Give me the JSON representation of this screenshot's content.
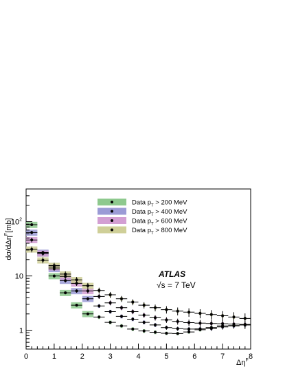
{
  "chart_data": {
    "type": "scatter",
    "xlabel_main": "Δη",
    "xlabel_sup": "F",
    "ylabel": "dσ/dΔη",
    "ylabel_sup": "F",
    "ylabel_unit": "[mb]",
    "xlim": [
      0,
      8
    ],
    "ylim": [
      0.45,
      400
    ],
    "ylog": true,
    "x_ticks": [
      "0",
      "1",
      "2",
      "3",
      "4",
      "5",
      "6",
      "7",
      "8"
    ],
    "y_tick_labels": {
      "ten_sq_base": "10",
      "ten_sq_exp": "2",
      "ten": "10",
      "one": "1"
    },
    "legend_position": "top-center",
    "annotation_title": "ATLAS",
    "annotation_energy": "√s = 7 TeV",
    "series": [
      {
        "name": "Data p",
        "name_sub": "T",
        "name_cut": " > 200 MeV",
        "band_color": "#8ec98e",
        "x": [
          0.2,
          0.6,
          1.0,
          1.4,
          1.8,
          2.2,
          2.6,
          3.0,
          3.4,
          3.8,
          4.2,
          4.6,
          5.0,
          5.4,
          5.8,
          6.2,
          6.6,
          7.0,
          7.4,
          7.8
        ],
        "y": [
          88,
          26,
          10,
          4.9,
          2.9,
          2.0,
          1.75,
          1.4,
          1.2,
          1.05,
          0.97,
          0.92,
          0.88,
          0.87,
          0.93,
          1.02,
          1.12,
          1.2,
          1.22,
          1.25
        ]
      },
      {
        "name": "Data p",
        "name_sub": "T",
        "name_cut": " > 400 MeV",
        "band_color": "#9b9bd6",
        "x": [
          0.2,
          0.6,
          1.0,
          1.4,
          1.8,
          2.2,
          2.6,
          3.0,
          3.4,
          3.8,
          4.2,
          4.6,
          5.0,
          5.4,
          5.8,
          6.2,
          6.6,
          7.0,
          7.4,
          7.8
        ],
        "y": [
          63,
          27,
          13.5,
          8.2,
          5.3,
          3.8,
          2.8,
          2.2,
          1.8,
          1.6,
          1.4,
          1.25,
          1.12,
          1.07,
          1.05,
          1.06,
          1.08,
          1.15,
          1.2,
          1.25
        ]
      },
      {
        "name": "Data p",
        "name_sub": "T",
        "name_cut": " > 600 MeV",
        "band_color": "#d39fd3",
        "x": [
          0.2,
          0.6,
          1.0,
          1.4,
          1.8,
          2.2,
          2.6,
          3.0,
          3.4,
          3.8,
          4.2,
          4.6,
          5.0,
          5.4,
          5.8,
          6.2,
          6.6,
          7.0,
          7.4,
          7.8
        ],
        "y": [
          46,
          26,
          14.5,
          9.8,
          7.3,
          5.3,
          4.2,
          3.2,
          2.6,
          2.2,
          1.9,
          1.7,
          1.55,
          1.45,
          1.38,
          1.35,
          1.33,
          1.32,
          1.3,
          1.28
        ]
      },
      {
        "name": "Data p",
        "name_sub": "T",
        "name_cut": " > 800 MeV",
        "band_color": "#cfcf98",
        "x": [
          0.2,
          0.6,
          1.0,
          1.4,
          1.8,
          2.2,
          2.6,
          3.0,
          3.4,
          3.8,
          4.2,
          4.6,
          5.0,
          5.4,
          5.8,
          6.2,
          6.6,
          7.0,
          7.4,
          7.8
        ],
        "y": [
          31,
          19.5,
          15.5,
          10.8,
          8.5,
          6.6,
          5.4,
          4.5,
          3.8,
          3.3,
          2.9,
          2.6,
          2.4,
          2.25,
          2.15,
          2.05,
          1.95,
          1.85,
          1.75,
          1.65
        ]
      }
    ]
  }
}
